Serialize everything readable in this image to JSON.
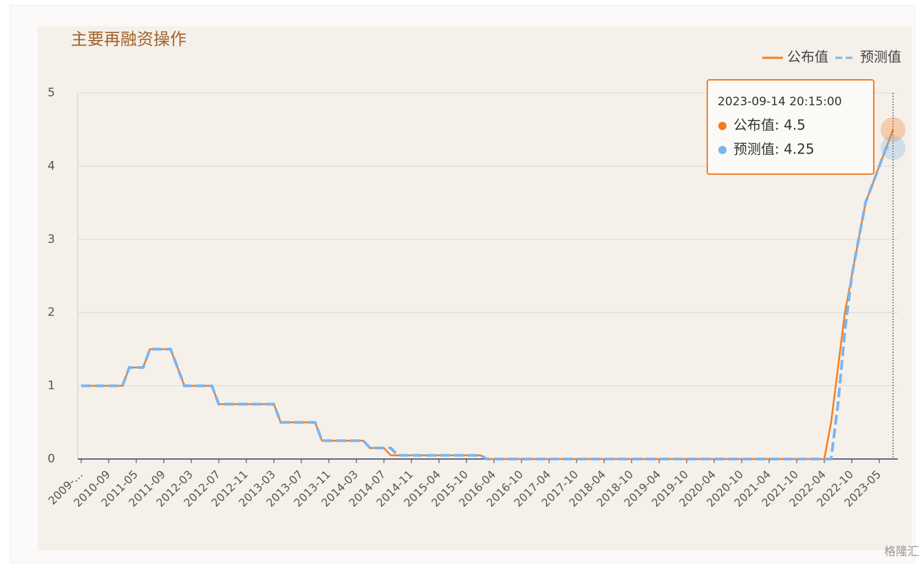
{
  "chart_data": {
    "type": "line",
    "title": "主要再融资操作",
    "categories": [
      "2009-…",
      null,
      null,
      null,
      "2010-09",
      null,
      null,
      null,
      "2011-05",
      null,
      null,
      null,
      "2011-09",
      null,
      null,
      null,
      "2012-03",
      null,
      null,
      null,
      "2012-07",
      null,
      null,
      null,
      "2012-11",
      null,
      null,
      null,
      "2013-03",
      null,
      null,
      null,
      "2013-07",
      null,
      null,
      null,
      "2013-11",
      null,
      null,
      null,
      "2014-03",
      null,
      null,
      null,
      "2014-07",
      null,
      null,
      null,
      "2014-11",
      null,
      null,
      null,
      "2015-04",
      null,
      null,
      null,
      "2015-10",
      null,
      null,
      null,
      "2016-04",
      null,
      null,
      null,
      "2016-10",
      null,
      null,
      null,
      "2017-04",
      null,
      null,
      null,
      "2017-10",
      null,
      null,
      null,
      "2018-04",
      null,
      null,
      null,
      "2018-10",
      null,
      null,
      null,
      "2019-04",
      null,
      null,
      null,
      "2019-10",
      null,
      null,
      null,
      "2020-04",
      null,
      null,
      null,
      "2020-10",
      null,
      null,
      null,
      "2021-04",
      null,
      null,
      null,
      "2021-10",
      null,
      null,
      null,
      "2022-04",
      null,
      null,
      null,
      "2022-10",
      null,
      null,
      null,
      "2023-05",
      null,
      null
    ],
    "series": [
      {
        "name": "公布值",
        "color": "#f57c1f",
        "dashed": false,
        "values": [
          1,
          1,
          1,
          1,
          1,
          1,
          1,
          1.25,
          1.25,
          1.25,
          1.5,
          1.5,
          1.5,
          1.5,
          1.25,
          1,
          1,
          1,
          1,
          1,
          0.75,
          0.75,
          0.75,
          0.75,
          0.75,
          0.75,
          0.75,
          0.75,
          0.75,
          0.5,
          0.5,
          0.5,
          0.5,
          0.5,
          0.5,
          0.25,
          0.25,
          0.25,
          0.25,
          0.25,
          0.25,
          0.25,
          0.15,
          0.15,
          0.15,
          0.05,
          0.05,
          0.05,
          0.05,
          0.05,
          0.05,
          0.05,
          0.05,
          0.05,
          0.05,
          0.05,
          0.05,
          0.05,
          0.05,
          0,
          0,
          0,
          0,
          0,
          0,
          0,
          0,
          0,
          0,
          0,
          0,
          0,
          0,
          0,
          0,
          0,
          0,
          0,
          0,
          0,
          0,
          0,
          0,
          0,
          0,
          0,
          0,
          0,
          0,
          0,
          0,
          0,
          0,
          0,
          0,
          0,
          0,
          0,
          0,
          0,
          0,
          0,
          0,
          0,
          0,
          0,
          0,
          0,
          0,
          0.5,
          1.25,
          2,
          2.5,
          3,
          3.5,
          3.75,
          4,
          4.25,
          4.5
        ]
      },
      {
        "name": "预测值",
        "color": "#7cb5ec",
        "dashed": true,
        "values": [
          1,
          1,
          1,
          1,
          1,
          1,
          1,
          1.25,
          1.25,
          1.25,
          1.5,
          1.5,
          1.5,
          1.5,
          1.25,
          1,
          1,
          1,
          1,
          1,
          0.75,
          0.75,
          0.75,
          0.75,
          0.75,
          0.75,
          0.75,
          0.75,
          0.75,
          0.5,
          0.5,
          0.5,
          0.5,
          0.5,
          0.5,
          0.25,
          0.25,
          0.25,
          0.25,
          0.25,
          0.25,
          0.25,
          0.15,
          0.15,
          0.15,
          0.15,
          0.05,
          0.05,
          0.05,
          0.05,
          0.05,
          0.05,
          0.05,
          0.05,
          0.05,
          0.05,
          0.05,
          0.05,
          0.05,
          0,
          0,
          0,
          0,
          0,
          0,
          0,
          0,
          0,
          0,
          0,
          0,
          0,
          0,
          0,
          0,
          0,
          0,
          0,
          0,
          0,
          0,
          0,
          0,
          0,
          0,
          0,
          0,
          0,
          0,
          0,
          0,
          0,
          0,
          0,
          0,
          0,
          0,
          0,
          0,
          0,
          0,
          0,
          0,
          0,
          0,
          0,
          0,
          0,
          0,
          0,
          0.75,
          1.75,
          2.5,
          3,
          3.5,
          3.75,
          4,
          4.25,
          4.25
        ]
      }
    ],
    "ylim": [
      0,
      5
    ],
    "yticks": [
      0,
      1,
      2,
      3,
      4,
      5
    ],
    "grid": true,
    "legend": "top-right",
    "tooltip": {
      "title": "2023-09-14 20:15:00",
      "items": [
        "公布值: 4.5",
        "预测值: 4.25"
      ]
    },
    "watermark": "格隆汇"
  }
}
